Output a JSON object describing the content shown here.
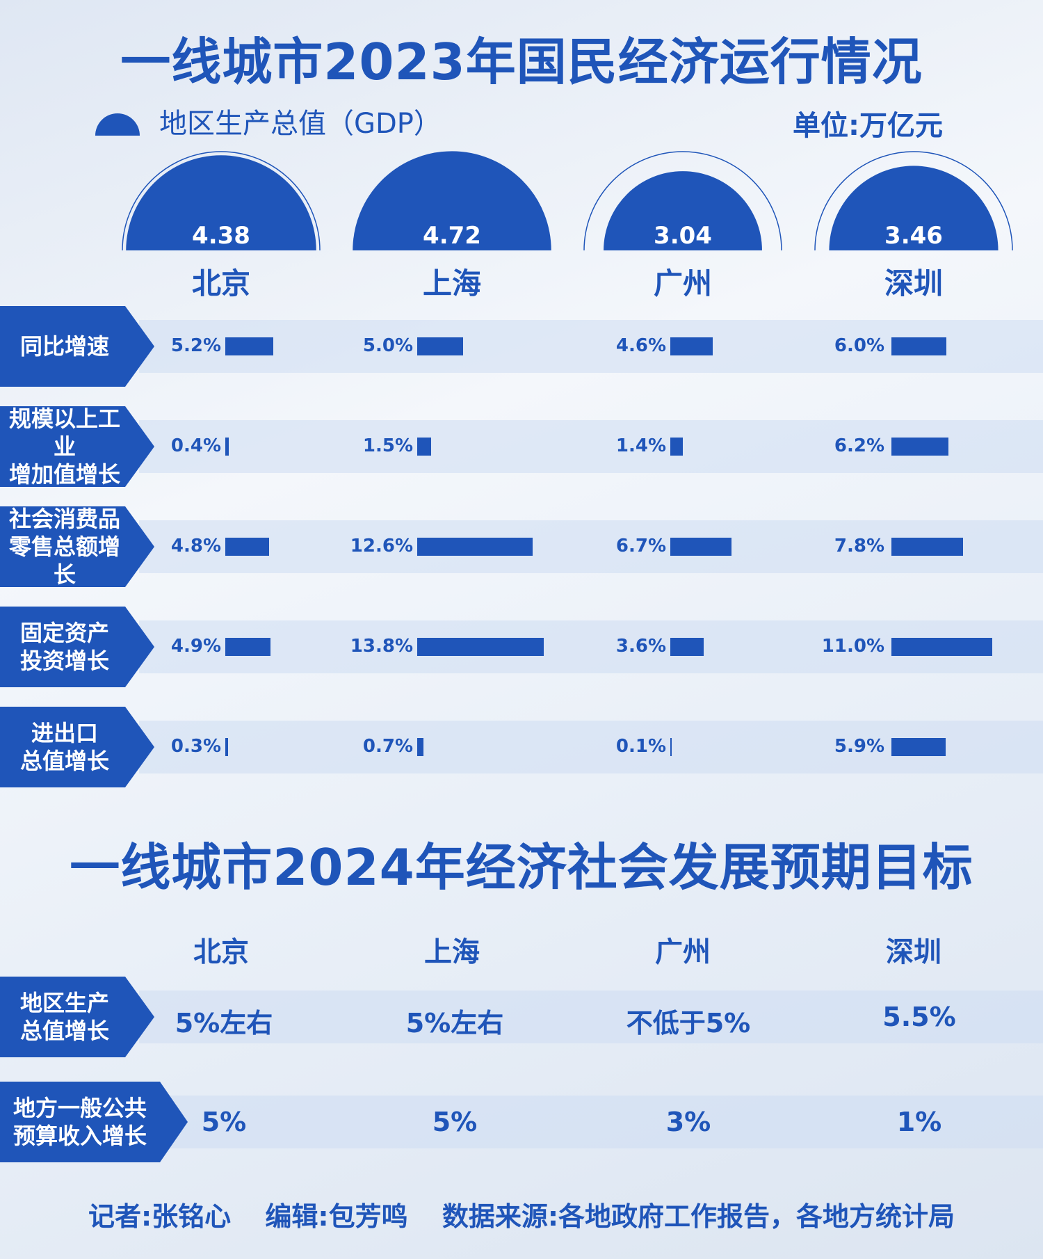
{
  "title_2023": "一线城市2023年国民经济运行情况",
  "legend_gdp": "地区生产总值（GDP）",
  "unit": "单位:万亿元",
  "cities": [
    "北京",
    "上海",
    "广州",
    "深圳"
  ],
  "chart_data": [
    {
      "type": "bar",
      "title": "地区生产总值（GDP）",
      "unit": "单位:万亿元",
      "categories": [
        "北京",
        "上海",
        "广州",
        "深圳"
      ],
      "values": [
        4.38,
        4.72,
        3.04,
        3.46
      ],
      "labels": [
        "4.38",
        "4.72",
        "3.04",
        "3.46"
      ]
    },
    {
      "type": "bar",
      "categories": [
        "北京",
        "上海",
        "广州",
        "深圳"
      ],
      "series": [
        {
          "name": "同比增速",
          "values": [
            5.2,
            5.0,
            4.6,
            6.0
          ],
          "labels": [
            "5.2%",
            "5.0%",
            "4.6%",
            "6.0%"
          ]
        },
        {
          "name": "规模以上工业增加值增长",
          "values": [
            0.4,
            1.5,
            1.4,
            6.2
          ],
          "labels": [
            "0.4%",
            "1.5%",
            "1.4%",
            "6.2%"
          ]
        },
        {
          "name": "社会消费品零售总额增长",
          "values": [
            4.8,
            12.6,
            6.7,
            7.8
          ],
          "labels": [
            "4.8%",
            "12.6%",
            "6.7%",
            "7.8%"
          ]
        },
        {
          "name": "固定资产投资增长",
          "values": [
            4.9,
            13.8,
            3.6,
            11.0
          ],
          "labels": [
            "4.9%",
            "13.8%",
            "3.6%",
            "11.0%"
          ]
        },
        {
          "name": "进出口总值增长",
          "values": [
            0.3,
            0.7,
            0.1,
            5.9
          ],
          "labels": [
            "0.3%",
            "0.7%",
            "0.1%",
            "5.9%"
          ]
        }
      ]
    }
  ],
  "row_tags": [
    [
      "同比增速"
    ],
    [
      "规模以上工业",
      "增加值增长"
    ],
    [
      "社会消费品",
      "零售总额增长"
    ],
    [
      "固定资产",
      "投资增长"
    ],
    [
      "进出口",
      "总值增长"
    ]
  ],
  "title_2024": "一线城市2024年经济社会发展预期目标",
  "targets": [
    {
      "tag": [
        "地区生产",
        "总值增长"
      ],
      "values": [
        "5%左右",
        "5%左右",
        "不低于5%",
        "5.5%"
      ]
    },
    {
      "tag": [
        "地方一般公共",
        "预算收入增长"
      ],
      "values": [
        "5%",
        "5%",
        "3%",
        "1%"
      ]
    }
  ],
  "footer": {
    "reporter": "记者:张铭心",
    "editor": "编辑:包芳鸣",
    "source": "数据来源:各地政府工作报告，各地方统计局"
  },
  "colors": {
    "primary": "#1f55b9",
    "band": "#cddcf2"
  }
}
